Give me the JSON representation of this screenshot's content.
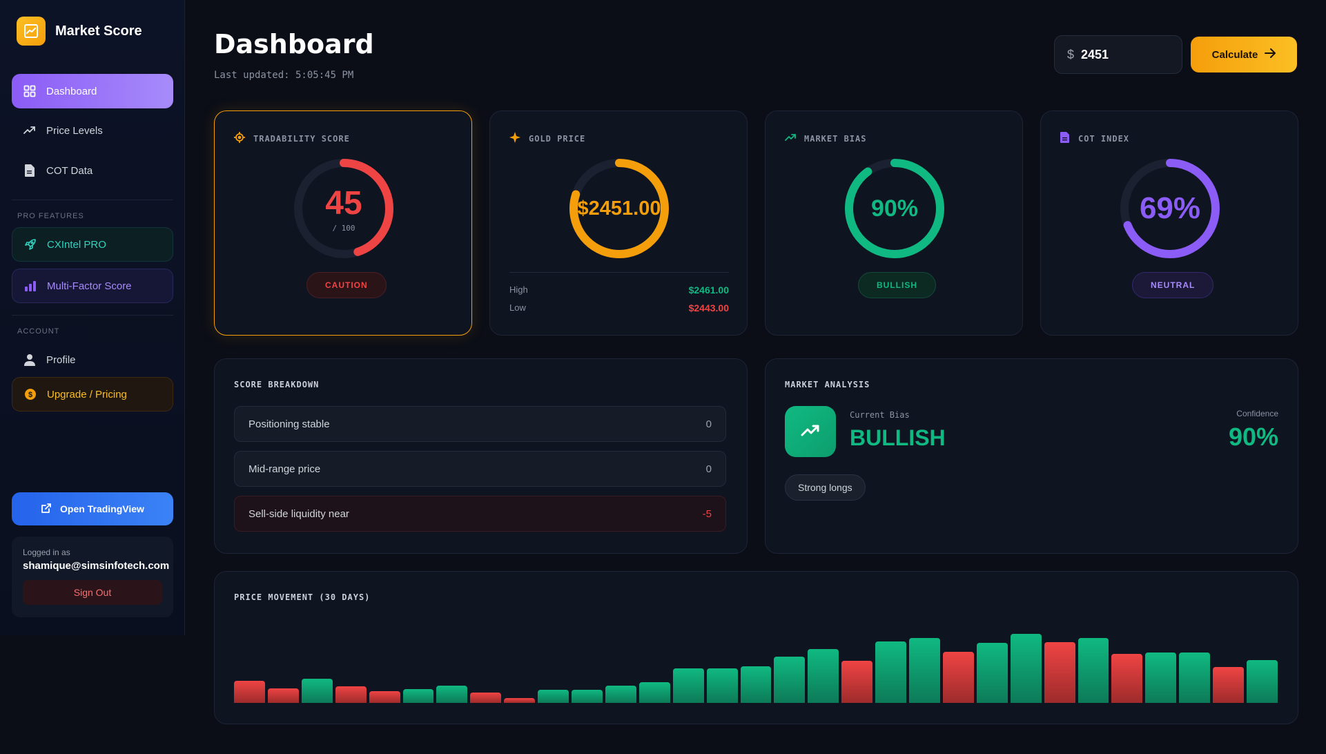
{
  "app": {
    "name": "Market Score"
  },
  "sidebar": {
    "nav": [
      {
        "label": "Dashboard",
        "icon": "grid-icon"
      },
      {
        "label": "Price Levels",
        "icon": "trending-up-icon"
      },
      {
        "label": "COT Data",
        "icon": "document-icon"
      }
    ],
    "pro_label": "PRO FEATURES",
    "pro": [
      {
        "label": "CXIntel PRO",
        "icon": "rocket-icon"
      },
      {
        "label": "Multi-Factor Score",
        "icon": "bar-chart-icon"
      }
    ],
    "account_label": "ACCOUNT",
    "account": [
      {
        "label": "Profile",
        "icon": "user-icon"
      },
      {
        "label": "Upgrade / Pricing",
        "icon": "dollar-icon"
      }
    ],
    "tradingview_label": "Open TradingView",
    "user": {
      "logged_in_label": "Logged in as",
      "email": "shamique@simsinfotech.com",
      "signout_label": "Sign Out"
    }
  },
  "header": {
    "title": "Dashboard",
    "last_updated": "Last updated: 5:05:45 PM",
    "currency": "$",
    "price_value": "2451",
    "calculate_label": "Calculate"
  },
  "cards": {
    "tradability": {
      "title": "TRADABILITY SCORE",
      "value": "45",
      "sub": "/ 100",
      "fraction": 0.45,
      "badge": "CAUTION",
      "color": "#ef4444"
    },
    "gold": {
      "title": "GOLD PRICE",
      "value": "$2451.00",
      "fraction": 0.8,
      "high_label": "High",
      "high": "$2461.00",
      "low_label": "Low",
      "low": "$2443.00",
      "color": "#f59e0b"
    },
    "bias": {
      "title": "MARKET BIAS",
      "value": "90%",
      "fraction": 0.9,
      "badge": "BULLISH",
      "color": "#10b981"
    },
    "cot": {
      "title": "COT INDEX",
      "value": "69%",
      "fraction": 0.69,
      "badge": "NEUTRAL",
      "color": "#8b5cf6"
    }
  },
  "breakdown": {
    "title": "SCORE BREAKDOWN",
    "rows": [
      {
        "label": "Positioning stable",
        "value": "0"
      },
      {
        "label": "Mid-range price",
        "value": "0"
      },
      {
        "label": "Sell-side liquidity near",
        "value": "-5"
      }
    ]
  },
  "analysis": {
    "title": "MARKET ANALYSIS",
    "bias_label": "Current Bias",
    "bias": "BULLISH",
    "confidence_label": "Confidence",
    "confidence": "90%",
    "tag": "Strong longs"
  },
  "chart_data": {
    "type": "bar",
    "title": "PRICE MOVEMENT (30 DAYS)",
    "values": [
      26,
      17,
      28,
      19,
      14,
      16,
      20,
      12,
      6,
      15,
      15,
      20,
      24,
      40,
      40,
      43,
      54,
      63,
      49,
      72,
      76,
      60,
      70,
      81,
      71,
      76,
      57,
      59,
      59,
      42,
      50
    ],
    "direction": [
      "down",
      "down",
      "up",
      "down",
      "down",
      "up",
      "up",
      "down",
      "down",
      "up",
      "up",
      "up",
      "up",
      "up",
      "up",
      "up",
      "up",
      "up",
      "down",
      "up",
      "up",
      "down",
      "up",
      "up",
      "down",
      "up",
      "down",
      "up",
      "up",
      "down",
      "up"
    ],
    "ylim": [
      0,
      100
    ]
  }
}
